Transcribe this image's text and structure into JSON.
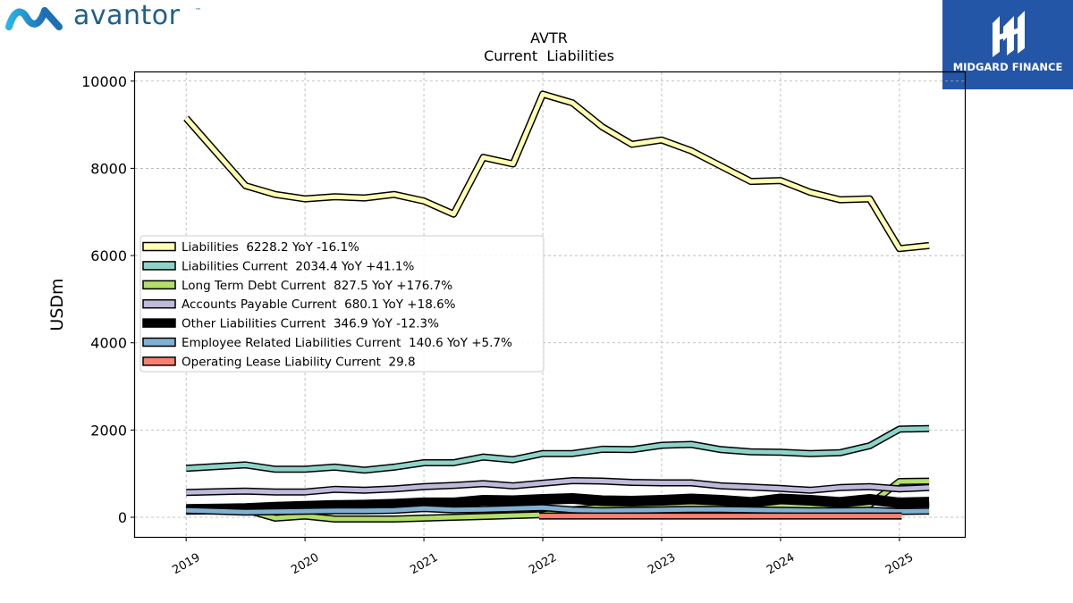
{
  "header": {
    "company_logo_text": "avantor",
    "company_logo_tm": "™",
    "brand_name": "MIDGARD FINANCE"
  },
  "chart_data": {
    "type": "line",
    "title": "AVTR",
    "subtitle": "Current  Liabilities",
    "ylabel": "USDm",
    "xlabel": "",
    "ylim": [
      -450,
      10200
    ],
    "xlim": [
      2018.57,
      2025.55
    ],
    "yticks": [
      0,
      2000,
      4000,
      6000,
      8000,
      10000
    ],
    "xticks": [
      2019,
      2020,
      2021,
      2022,
      2023,
      2024,
      2025
    ],
    "xtick_labels": [
      "2019",
      "2020",
      "2021",
      "2022",
      "2023",
      "2024",
      "2025"
    ],
    "grid": true,
    "legend_position": "center-left",
    "series": [
      {
        "name": "Liabilities",
        "legend": "Liabilities  6228.2 YoY -16.1%",
        "color": "#ffffb3",
        "width": 5,
        "x": [
          2019.0,
          2019.5,
          2019.75,
          2020.0,
          2020.25,
          2020.5,
          2020.75,
          2021.0,
          2021.25,
          2021.5,
          2021.75,
          2022.0,
          2022.25,
          2022.5,
          2022.75,
          2023.0,
          2023.25,
          2023.5,
          2023.75,
          2024.0,
          2024.25,
          2024.5,
          2024.75,
          2025.0,
          2025.25
        ],
        "values": [
          9150,
          7600,
          7400,
          7300,
          7350,
          7320,
          7400,
          7250,
          6950,
          8250,
          8100,
          9700,
          9500,
          8950,
          8550,
          8650,
          8400,
          8050,
          7700,
          7720,
          7450,
          7280,
          7300,
          6160,
          6228
        ]
      },
      {
        "name": "Liabilities Current",
        "legend": "Liabilities Current  2034.4 YoY +41.1%",
        "color": "#8dd3c7",
        "width": 5,
        "x": [
          2019.0,
          2019.5,
          2019.75,
          2020.0,
          2020.25,
          2020.5,
          2020.75,
          2021.0,
          2021.25,
          2021.5,
          2021.75,
          2022.0,
          2022.25,
          2022.5,
          2022.75,
          2023.0,
          2023.25,
          2023.5,
          2023.75,
          2024.0,
          2024.25,
          2024.5,
          2024.75,
          2025.0,
          2025.25
        ],
        "values": [
          1120,
          1200,
          1100,
          1100,
          1150,
          1080,
          1150,
          1250,
          1250,
          1380,
          1320,
          1460,
          1460,
          1560,
          1550,
          1650,
          1670,
          1550,
          1500,
          1490,
          1460,
          1480,
          1640,
          2020,
          2034
        ]
      },
      {
        "name": "Long Term Debt Current",
        "legend": "Long Term Debt Current  827.5 YoY +176.7%",
        "color": "#b3de69",
        "width": 5,
        "x": [
          2019.0,
          2019.5,
          2019.75,
          2020.0,
          2020.25,
          2020.5,
          2020.75,
          2021.0,
          2021.25,
          2021.5,
          2021.75,
          2022.0,
          2022.25,
          2022.5,
          2022.75,
          2023.0,
          2023.25,
          2023.5,
          2023.75,
          2024.0,
          2024.25,
          2024.5,
          2024.75,
          2025.0,
          2025.25
        ],
        "values": [
          180,
          170,
          -20,
          30,
          -40,
          -40,
          -40,
          -20,
          0,
          20,
          40,
          60,
          170,
          230,
          230,
          240,
          250,
          250,
          270,
          280,
          260,
          270,
          290,
          820,
          828
        ]
      },
      {
        "name": "Accounts Payable Current",
        "legend": "Accounts Payable Current  680.1 YoY +18.6%",
        "color": "#bebada",
        "width": 5,
        "x": [
          2019.0,
          2019.5,
          2019.75,
          2020.0,
          2020.25,
          2020.5,
          2020.75,
          2021.0,
          2021.25,
          2021.5,
          2021.75,
          2022.0,
          2022.25,
          2022.5,
          2022.75,
          2023.0,
          2023.25,
          2023.5,
          2023.75,
          2024.0,
          2024.25,
          2024.5,
          2024.75,
          2025.0,
          2025.25
        ],
        "values": [
          570,
          600,
          580,
          580,
          640,
          620,
          650,
          700,
          730,
          770,
          720,
          780,
          840,
          830,
          800,
          790,
          790,
          720,
          690,
          660,
          620,
          680,
          700,
          650,
          680
        ]
      },
      {
        "name": "Other Liabilities Current",
        "legend": "Other Liabilities Current  346.9 YoY -12.3%",
        "color": "#000000",
        "width": 9,
        "x": [
          2019.0,
          2019.5,
          2019.75,
          2020.0,
          2020.25,
          2020.5,
          2020.75,
          2021.0,
          2021.25,
          2021.5,
          2021.75,
          2022.0,
          2022.25,
          2022.5,
          2022.75,
          2023.0,
          2023.25,
          2023.5,
          2023.75,
          2024.0,
          2024.25,
          2024.5,
          2024.75,
          2025.0,
          2025.25
        ],
        "values": [
          180,
          200,
          230,
          250,
          270,
          280,
          300,
          330,
          330,
          390,
          380,
          410,
          430,
          380,
          370,
          390,
          420,
          390,
          340,
          420,
          390,
          340,
          410,
          330,
          347
        ]
      },
      {
        "name": "Employee Related Liabilities Current",
        "legend": "Employee Related Liabilities Current  140.6 YoY +5.7%",
        "color": "#80b1d3",
        "width": 5,
        "x": [
          2019.0,
          2019.5,
          2019.75,
          2020.0,
          2020.25,
          2020.5,
          2020.75,
          2021.0,
          2021.25,
          2021.5,
          2021.75,
          2022.0,
          2022.25,
          2022.5,
          2022.75,
          2023.0,
          2023.25,
          2023.5,
          2023.75,
          2024.0,
          2024.25,
          2024.5,
          2024.75,
          2025.0,
          2025.25
        ],
        "values": [
          160,
          120,
          130,
          140,
          150,
          150,
          160,
          200,
          170,
          180,
          200,
          220,
          170,
          150,
          160,
          170,
          180,
          180,
          170,
          160,
          150,
          150,
          160,
          133,
          141
        ]
      },
      {
        "name": "Operating Lease Liability Current",
        "legend": "Operating Lease Liability Current  29.8",
        "color": "#fb8072",
        "width": 5,
        "x": [
          2021.97,
          2025.02
        ],
        "values": [
          30,
          30
        ]
      }
    ]
  }
}
